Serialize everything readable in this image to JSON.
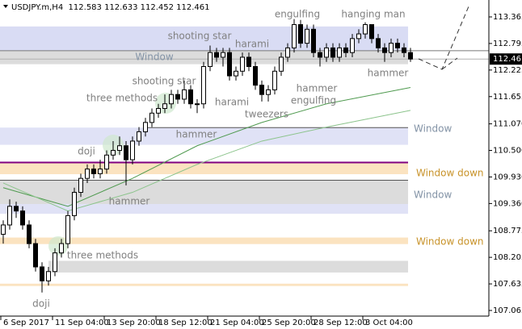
{
  "chart_data": {
    "type": "candlestick",
    "header": "USDJPY.m,H4  112.583 112.633 112.452 112.461",
    "open": [
      108.7,
      108.9,
      109.3,
      109.2,
      108.9,
      108.5,
      108.0,
      107.7,
      107.9,
      108.3,
      108.5,
      109.1,
      109.6,
      109.9,
      110.1,
      110.0,
      110.1,
      110.4,
      110.5,
      110.6,
      110.3,
      110.7,
      110.9,
      111.1,
      111.3,
      111.4,
      111.5,
      111.7,
      111.6,
      111.8,
      111.5,
      111.5,
      112.3,
      112.6,
      112.5,
      112.6,
      112.1,
      112.2,
      112.5,
      112.3,
      111.9,
      111.7,
      111.8,
      112.2,
      112.5,
      112.7,
      113.2,
      112.8,
      113.1,
      112.6,
      112.5,
      112.7,
      112.5,
      112.7,
      112.6,
      112.9,
      113.0,
      113.2,
      112.9,
      112.7,
      112.6,
      112.8,
      112.7,
      112.6
    ],
    "high": [
      109.0,
      109.45,
      109.4,
      109.3,
      109.0,
      108.6,
      108.1,
      108.0,
      108.4,
      108.6,
      109.2,
      109.7,
      110.0,
      110.2,
      110.2,
      110.3,
      110.5,
      110.7,
      110.8,
      110.7,
      110.8,
      111.0,
      111.2,
      111.4,
      111.5,
      111.7,
      111.8,
      111.8,
      112.0,
      111.9,
      111.6,
      112.4,
      112.75,
      112.7,
      112.7,
      112.7,
      112.3,
      112.6,
      112.6,
      112.4,
      112.0,
      111.9,
      112.3,
      112.6,
      112.8,
      113.32,
      113.3,
      113.2,
      113.2,
      112.7,
      112.8,
      112.8,
      112.8,
      112.8,
      113.0,
      113.1,
      113.25,
      113.2,
      113.0,
      112.8,
      112.9,
      112.9,
      112.8,
      112.7
    ],
    "low": [
      108.5,
      108.8,
      109.05,
      108.8,
      108.4,
      107.9,
      107.45,
      107.6,
      107.8,
      108.2,
      108.4,
      109.0,
      109.5,
      109.8,
      109.9,
      109.9,
      110.0,
      110.3,
      110.4,
      109.75,
      110.2,
      110.6,
      110.8,
      111.0,
      111.2,
      111.3,
      111.4,
      111.5,
      111.5,
      111.4,
      111.3,
      111.4,
      112.2,
      112.4,
      112.3,
      112.0,
      112.0,
      112.1,
      112.2,
      111.8,
      111.55,
      111.55,
      111.7,
      112.1,
      112.4,
      112.6,
      112.7,
      112.7,
      112.5,
      112.3,
      112.4,
      112.4,
      112.4,
      112.5,
      112.5,
      112.8,
      112.9,
      112.8,
      112.6,
      112.4,
      112.5,
      112.6,
      112.5,
      112.4
    ],
    "close": [
      108.9,
      109.3,
      109.2,
      108.9,
      108.5,
      108.0,
      107.7,
      107.9,
      108.3,
      108.5,
      109.1,
      109.6,
      109.9,
      110.1,
      110.0,
      110.1,
      110.4,
      110.5,
      110.6,
      110.3,
      110.7,
      110.9,
      111.1,
      111.3,
      111.4,
      111.5,
      111.7,
      111.6,
      111.8,
      111.5,
      111.5,
      112.3,
      112.6,
      112.5,
      112.6,
      112.1,
      112.2,
      112.5,
      112.3,
      111.9,
      111.7,
      111.8,
      112.2,
      112.5,
      112.7,
      113.2,
      112.8,
      113.1,
      112.6,
      112.5,
      112.7,
      112.5,
      112.7,
      112.6,
      112.9,
      113.0,
      113.2,
      112.9,
      112.7,
      112.6,
      112.8,
      112.7,
      112.6,
      112.461
    ],
    "up_color": "#ffffff",
    "down_color": "#000000",
    "xlim": [
      0,
      75.625
    ],
    "ylim": [
      106.944,
      113.728
    ],
    "xticks": [
      {
        "value": 0,
        "label": "6 Sep 2017"
      },
      {
        "value": 8,
        "label": "11 Sep 04:00"
      },
      {
        "value": 16,
        "label": "13 Sep 20:00"
      },
      {
        "value": 24,
        "label": "18 Sep 12:00"
      },
      {
        "value": 32,
        "label": "21 Sep 04:00"
      },
      {
        "value": 40,
        "label": "25 Sep 20:00"
      },
      {
        "value": 48,
        "label": "28 Sep 12:00"
      },
      {
        "value": 56,
        "label": "3 Oct 04:00"
      }
    ],
    "yticks": [
      113.365,
      112.795,
      112.225,
      111.655,
      {
        "value": 111.07,
        "label": "111.070"
      },
      {
        "value": 110.5,
        "label": "110.500"
      },
      {
        "value": 109.93,
        "label": "109.930"
      },
      {
        "value": 109.36,
        "label": "109.360"
      },
      108.775,
      108.205,
      107.635,
      107.065
    ],
    "ma": [
      {
        "color": "#4f9a4f",
        "x": [
          0,
          10,
          20,
          30,
          40,
          50,
          63
        ],
        "values": [
          109.7,
          109.3,
          109.9,
          110.6,
          111.1,
          111.5,
          111.85
        ]
      },
      {
        "color": "#8cc48c",
        "x": [
          0,
          10,
          20,
          30,
          40,
          50,
          63
        ],
        "values": [
          109.8,
          109.2,
          109.6,
          110.2,
          110.7,
          111.0,
          111.36
        ]
      }
    ],
    "zones": [
      {
        "from": 113.16,
        "to": 112.64,
        "color": "#d9dcf4"
      },
      {
        "from": 112.64,
        "to": 112.35,
        "color": "#dcdcdc"
      },
      {
        "from": 110.99,
        "to": 110.62,
        "color": "#e0e2f6"
      },
      {
        "from": 110.24,
        "to": 109.99,
        "color": "#fbe3c0"
      },
      {
        "from": 109.86,
        "to": 109.35,
        "color": "#dcdcdc"
      },
      {
        "from": 109.35,
        "to": 109.14,
        "color": "#e0e2f6"
      },
      {
        "from": 108.63,
        "to": 108.49,
        "color": "#fbe3c0"
      },
      {
        "from": 108.13,
        "to": 107.88,
        "color": "#dcdcdc"
      },
      {
        "from": 107.64,
        "to": 107.59,
        "color": "#fbe3c0"
      }
    ],
    "levels": [
      {
        "value": 112.64,
        "color": "#777777"
      },
      {
        "value": 110.99,
        "color": "#555555"
      },
      {
        "value": 110.24,
        "color": "#800080"
      },
      {
        "value": 109.86,
        "color": "#555555"
      }
    ],
    "annotations": [
      {
        "text": "engulfing",
        "color": "#808080"
      },
      {
        "text": "hanging man",
        "color": "#808080"
      },
      {
        "text": "shooting star",
        "color": "#808080"
      },
      {
        "text": "harami",
        "color": "#808080"
      },
      {
        "text": "Window",
        "color": "#8393a6"
      },
      {
        "text": "hammer",
        "color": "#808080"
      },
      {
        "text": "shooting star",
        "color": "#808080"
      },
      {
        "text": "hammer",
        "color": "#808080"
      },
      {
        "text": "three methods",
        "color": "#808080"
      },
      {
        "text": "harami",
        "color": "#808080"
      },
      {
        "text": "engulfing",
        "color": "#808080"
      },
      {
        "text": "tweezers",
        "color": "#808080"
      },
      {
        "text": "hammer",
        "color": "#808080"
      },
      {
        "text": "Window",
        "color": "#8393a6"
      },
      {
        "text": "doji",
        "color": "#808080"
      },
      {
        "text": "Window down",
        "color": "#c8932a"
      },
      {
        "text": "Window",
        "color": "#8393a6"
      },
      {
        "text": "hammer",
        "color": "#808080"
      },
      {
        "text": "Window down",
        "color": "#c8932a"
      },
      {
        "text": "three methods",
        "color": "#808080"
      },
      {
        "text": "doji",
        "color": "#808080"
      }
    ]
  }
}
